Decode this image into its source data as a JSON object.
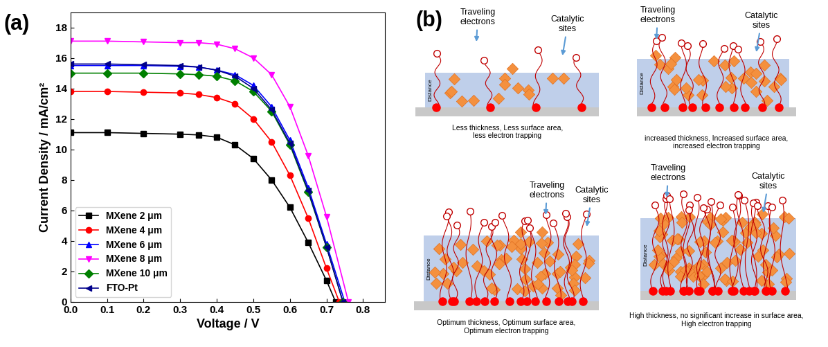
{
  "panel_labels": [
    "(a)",
    "(b)"
  ],
  "chart_data": {
    "type": "line",
    "xlabel": "Voltage / V",
    "ylabel": "Current Density / mA/cm²",
    "xlim": [
      0,
      0.86
    ],
    "ylim": [
      0,
      19
    ],
    "xticks": [
      0.0,
      0.1,
      0.2,
      0.3,
      0.4,
      0.5,
      0.6,
      0.7,
      0.8
    ],
    "yticks": [
      0,
      2,
      4,
      6,
      8,
      10,
      12,
      14,
      16,
      18
    ],
    "legend": "lower left",
    "series": [
      {
        "name": "MXene 2 μm",
        "color": "#000000",
        "marker": "square",
        "line_style": "solid",
        "x": [
          0.0,
          0.1,
          0.2,
          0.3,
          0.35,
          0.4,
          0.45,
          0.5,
          0.55,
          0.6,
          0.65,
          0.7,
          0.725
        ],
        "values": [
          11.1,
          11.1,
          11.05,
          11.0,
          10.95,
          10.8,
          10.3,
          9.4,
          8.0,
          6.2,
          3.9,
          1.4,
          0
        ]
      },
      {
        "name": "MXene 4 μm",
        "color": "#ff0000",
        "marker": "circle",
        "line_style": "solid",
        "x": [
          0.0,
          0.1,
          0.2,
          0.3,
          0.35,
          0.4,
          0.45,
          0.5,
          0.55,
          0.6,
          0.65,
          0.7,
          0.735
        ],
        "values": [
          13.8,
          13.8,
          13.75,
          13.7,
          13.6,
          13.4,
          13.0,
          12.0,
          10.5,
          8.3,
          5.5,
          2.2,
          0
        ]
      },
      {
        "name": "MXene 6 μm",
        "color": "#0000ff",
        "marker": "triangle_up",
        "line_style": "solid",
        "x": [
          0.0,
          0.1,
          0.2,
          0.3,
          0.35,
          0.4,
          0.45,
          0.5,
          0.55,
          0.6,
          0.65,
          0.7,
          0.75
        ],
        "values": [
          15.5,
          15.5,
          15.5,
          15.45,
          15.4,
          15.2,
          14.9,
          14.2,
          12.8,
          10.6,
          7.5,
          3.8,
          0
        ]
      },
      {
        "name": "MXene 8 μm",
        "color": "#ff00ff",
        "marker": "triangle_down",
        "line_style": "solid",
        "x": [
          0.0,
          0.1,
          0.2,
          0.3,
          0.35,
          0.4,
          0.45,
          0.5,
          0.55,
          0.6,
          0.65,
          0.7,
          0.76
        ],
        "values": [
          17.1,
          17.1,
          17.05,
          17.0,
          17.0,
          16.9,
          16.6,
          16.0,
          14.9,
          12.8,
          9.6,
          5.6,
          0
        ]
      },
      {
        "name": "MXene 10 μm",
        "color": "#008000",
        "marker": "diamond",
        "line_style": "solid",
        "x": [
          0.0,
          0.1,
          0.2,
          0.3,
          0.35,
          0.4,
          0.45,
          0.5,
          0.55,
          0.6,
          0.65,
          0.7,
          0.745
        ],
        "values": [
          15.0,
          15.0,
          15.0,
          14.95,
          14.9,
          14.8,
          14.5,
          13.8,
          12.5,
          10.3,
          7.2,
          3.6,
          0
        ]
      },
      {
        "name": "FTO-Pt",
        "color": "#00008b",
        "marker": "triangle_left",
        "line_style": "solid",
        "x": [
          0.0,
          0.1,
          0.2,
          0.3,
          0.35,
          0.4,
          0.45,
          0.5,
          0.55,
          0.6,
          0.65,
          0.7,
          0.745
        ],
        "values": [
          15.6,
          15.6,
          15.55,
          15.5,
          15.4,
          15.2,
          14.8,
          14.0,
          12.6,
          10.4,
          7.3,
          3.6,
          0
        ]
      }
    ]
  },
  "diagram": {
    "traveling_label": "Traveling\nelectrons",
    "sites_label": "Catalytic\nsites",
    "axis_label": "Distance",
    "panels": [
      {
        "caption": "Less thickness, Less surface area,\nless electron trapping"
      },
      {
        "caption": "increased thickness, Increased surface area,\nincreased electron trapping"
      },
      {
        "caption": "Optimum thickness, Optimum surface area,\nOptimum electron trapping"
      },
      {
        "caption": "High thickness, no significant increase in surface area,\nHigh electron trapping"
      }
    ]
  }
}
